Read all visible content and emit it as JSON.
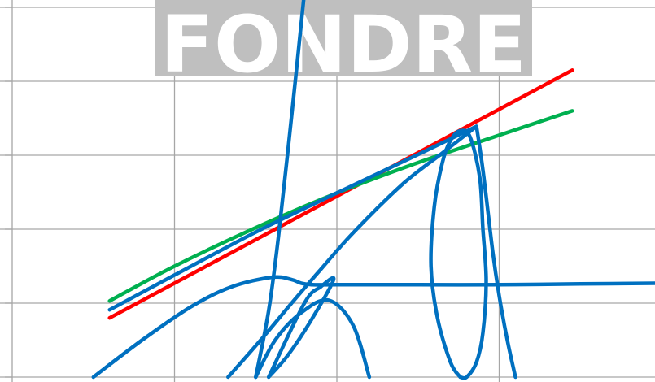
{
  "chart_data": {
    "type": "line",
    "title": "",
    "xlabel": "",
    "ylabel": "",
    "xlim": [
      0,
      4
    ],
    "ylim": [
      0,
      5
    ],
    "grid": true,
    "legend": "none",
    "watermark": {
      "text": "FONDRE",
      "background": "#bfbfbf",
      "color": "#ffffff"
    },
    "series": [
      {
        "color": "#ff0000",
        "x": [
          0.6,
          3.45
        ],
        "y": [
          0.8,
          4.15
        ]
      },
      {
        "color": "#00b050",
        "x": [
          0.6,
          1.0,
          1.5,
          2.0,
          2.5,
          3.0,
          3.45
        ],
        "y": [
          1.03,
          1.5,
          2.02,
          2.49,
          2.9,
          3.27,
          3.6
        ]
      },
      {
        "color": "#0070c0",
        "x": [
          0.6,
          1.0,
          1.5,
          2.0,
          2.5,
          2.86
        ],
        "y": [
          0.91,
          1.38,
          1.96,
          2.49,
          3.01,
          3.39
        ]
      },
      {
        "color": "#0070c0",
        "x": [
          0.5,
          0.8,
          1.1,
          1.35,
          1.6,
          1.72,
          1.78,
          1.85,
          2.0,
          2.5,
          3.0,
          3.5,
          4.0
        ],
        "y": [
          0.0,
          0.5,
          0.95,
          1.22,
          1.35,
          1.32,
          1.27,
          1.25,
          1.25,
          1.25,
          1.25,
          1.26,
          1.27
        ]
      },
      {
        "color": "#0070c0",
        "x": [
          1.33,
          1.55,
          1.71,
          1.89,
          2.1,
          2.4,
          2.65,
          2.86
        ],
        "y": [
          0.0,
          0.55,
          0.97,
          1.43,
          1.95,
          2.6,
          3.03,
          3.39
        ]
      },
      {
        "color": "#0070c0",
        "x": [
          1.5,
          1.58,
          1.64,
          1.72,
          1.8
        ],
        "y": [
          0.0,
          0.9,
          1.9,
          3.5,
          5.2
        ]
      },
      {
        "color": "#0070c0",
        "x": [
          1.5,
          1.62,
          1.78,
          1.95,
          2.1,
          2.2
        ],
        "y": [
          0.0,
          0.5,
          0.87,
          1.04,
          0.7,
          0.0
        ]
      },
      {
        "color": "#0070c0",
        "x": [
          1.58,
          1.8,
          1.9,
          1.98,
          1.85,
          1.7,
          1.58
        ],
        "y": [
          0.0,
          1.0,
          1.22,
          1.32,
          0.8,
          0.3,
          0.0
        ]
      },
      {
        "color": "#0070c0",
        "x": [
          2.76,
          2.7,
          2.62,
          2.58,
          2.6,
          2.65,
          2.7,
          2.76,
          2.82,
          2.88,
          2.9,
          2.92,
          2.9,
          2.86,
          2.8,
          2.76
        ],
        "y": [
          0.0,
          0.2,
          0.8,
          1.5,
          2.3,
          2.9,
          3.2,
          3.33,
          3.25,
          2.7,
          2.0,
          1.3,
          0.6,
          0.2,
          0.0,
          0.0
        ]
      },
      {
        "color": "#0070c0",
        "x": [
          2.86,
          2.9,
          2.96,
          3.0,
          3.05,
          3.1
        ],
        "y": [
          3.39,
          2.8,
          1.7,
          1.1,
          0.5,
          0.0
        ]
      }
    ]
  }
}
